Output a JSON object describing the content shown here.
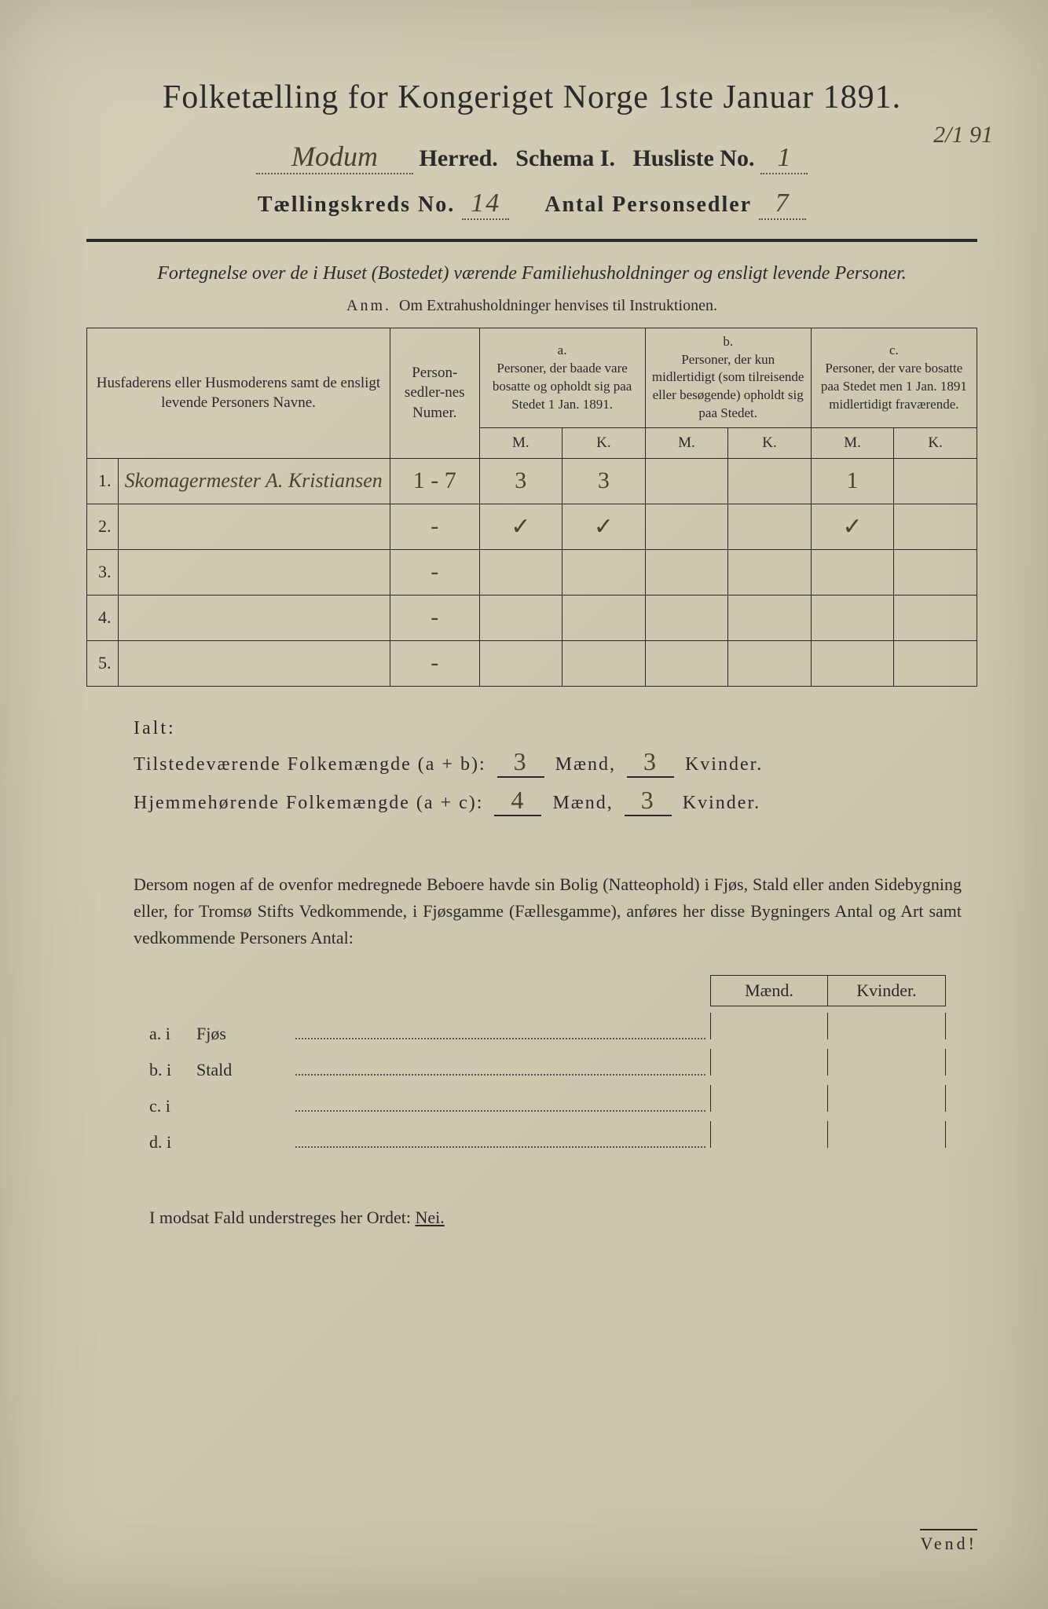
{
  "page": {
    "background_color": "#cec8b0",
    "text_color": "#2a2a2a",
    "handwriting_color": "#4a4230"
  },
  "header": {
    "title": "Folketælling for Kongeriget Norge 1ste Januar 1891.",
    "herred_value": "Modum",
    "herred_label": "Herred.",
    "schema_label": "Schema I.",
    "husliste_label": "Husliste No.",
    "husliste_value": "1",
    "corner_date": "2/1 91",
    "kreds_label": "Tællingskreds No.",
    "kreds_value": "14",
    "personsedler_label": "Antal Personsedler",
    "personsedler_value": "7"
  },
  "subtitle": {
    "line": "Fortegnelse over de i Huset (Bostedet) værende Familiehusholdninger og ensligt levende Personer.",
    "anm_label": "Anm.",
    "anm_text": "Om Extrahusholdninger henvises til Instruktionen."
  },
  "table": {
    "col_name": "Husfaderens eller Husmoderens samt de ensligt levende Personers Navne.",
    "col_num": "Person-sedler-nes Numer.",
    "group_a_label": "a.",
    "group_a_text": "Personer, der baade vare bosatte og opholdt sig paa Stedet 1 Jan. 1891.",
    "group_b_label": "b.",
    "group_b_text": "Personer, der kun midlertidigt (som tilreisende eller besøgende) opholdt sig paa Stedet.",
    "group_c_label": "c.",
    "group_c_text": "Personer, der vare bosatte paa Stedet men 1 Jan. 1891 midlertidigt fraværende.",
    "mk_m": "M.",
    "mk_k": "K.",
    "rows": [
      {
        "n": "1.",
        "name": "Skomagermester A. Kristiansen",
        "num": "1 - 7",
        "a_m": "3",
        "a_k": "3",
        "b_m": "",
        "b_k": "",
        "c_m": "1",
        "c_k": ""
      },
      {
        "n": "2.",
        "name": "",
        "num": "-",
        "a_m": "✓",
        "a_k": "✓",
        "b_m": "",
        "b_k": "",
        "c_m": "✓",
        "c_k": ""
      },
      {
        "n": "3.",
        "name": "",
        "num": "-",
        "a_m": "",
        "a_k": "",
        "b_m": "",
        "b_k": "",
        "c_m": "",
        "c_k": ""
      },
      {
        "n": "4.",
        "name": "",
        "num": "-",
        "a_m": "",
        "a_k": "",
        "b_m": "",
        "b_k": "",
        "c_m": "",
        "c_k": ""
      },
      {
        "n": "5.",
        "name": "",
        "num": "-",
        "a_m": "",
        "a_k": "",
        "b_m": "",
        "b_k": "",
        "c_m": "",
        "c_k": ""
      }
    ]
  },
  "totals": {
    "ialt": "Ialt:",
    "line1_label": "Tilstedeværende Folkemængde (a + b):",
    "line1_m": "3",
    "line1_k": "3",
    "line2_label": "Hjemmehørende Folkemængde (a + c):",
    "line2_m": "4",
    "line2_k": "3",
    "maend": "Mænd,",
    "kvinder": "Kvinder."
  },
  "paragraph": "Dersom nogen af de ovenfor medregnede Beboere havde sin Bolig (Natteophold) i Fjøs, Stald eller anden Sidebygning eller, for Tromsø Stifts Vedkommende, i Fjøsgamme (Fællesgamme), anføres her disse Bygningers Antal og Art samt vedkommende Personers Antal:",
  "side": {
    "hdr_m": "Mænd.",
    "hdr_k": "Kvinder.",
    "rows": [
      {
        "lbl": "a.  i",
        "name": "Fjøs"
      },
      {
        "lbl": "b.  i",
        "name": "Stald"
      },
      {
        "lbl": "c.  i",
        "name": ""
      },
      {
        "lbl": "d.  i",
        "name": ""
      }
    ]
  },
  "footer": {
    "text_before": "I modsat Fald understreges her Ordet: ",
    "nei": "Nei.",
    "vend": "Vend!"
  }
}
